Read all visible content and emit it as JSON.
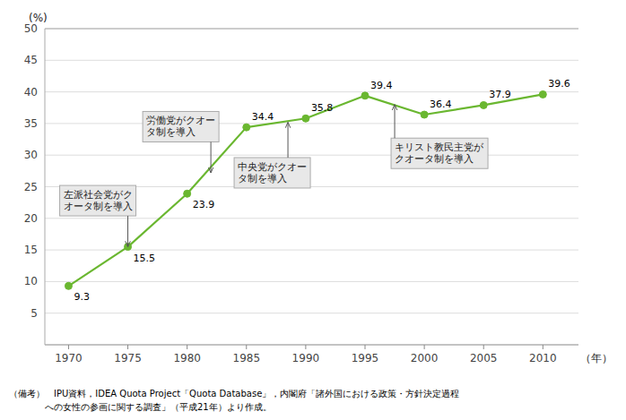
{
  "chart_data": {
    "type": "line",
    "x": [
      1970,
      1975,
      1980,
      1985,
      1990,
      1995,
      2000,
      2005,
      2010
    ],
    "values": [
      9.3,
      15.5,
      23.9,
      34.4,
      35.8,
      39.4,
      36.4,
      37.9,
      39.6
    ],
    "color": "#6ab730",
    "marker": "circle",
    "xlim": [
      1968,
      2013
    ],
    "ylim": [
      0,
      50
    ],
    "xticks": [
      1970,
      1975,
      1980,
      1985,
      1990,
      1995,
      2000,
      2005,
      2010
    ],
    "yticks": [
      5,
      10,
      15,
      20,
      25,
      30,
      35,
      40,
      45,
      50
    ],
    "grid": true,
    "data_labels": true,
    "y_label": "(%)",
    "x_label": "（年）",
    "annotations": [
      {
        "text": "左派社会党がク\nオータ制を導入",
        "x": 1975,
        "y": 15.5
      },
      {
        "text": "労働党がクオー\nタ制を導入",
        "x": 1982,
        "y": 27.2
      },
      {
        "text": "中央党がクオー\nタ制を導入",
        "x": 1988.5,
        "y": 35.2
      },
      {
        "text": "キリスト教民主党が\nクオータ制を導入",
        "x": 1997.5,
        "y": 38.0
      }
    ],
    "notes": [
      "（備考）　IPU資料，IDEA Quota Project「Quota Database」，内閣府「諸外国における政策・方針決定過程",
      "　　　　への女性の参画に関する調査」（平成21年）より作成。"
    ]
  }
}
